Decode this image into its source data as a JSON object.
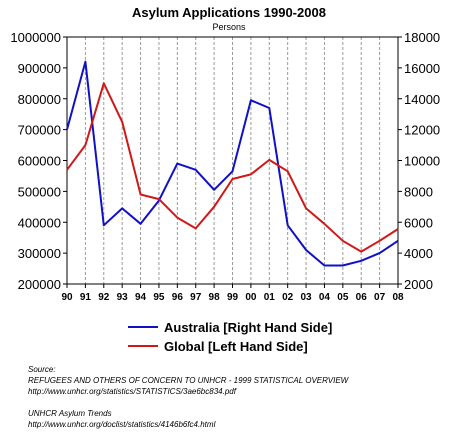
{
  "chart_data": {
    "type": "line",
    "title": "Asylum Applications 1990-2008",
    "subtitle": "Persons",
    "categories": [
      "90",
      "91",
      "92",
      "93",
      "94",
      "95",
      "96",
      "97",
      "98",
      "99",
      "00",
      "01",
      "02",
      "03",
      "04",
      "05",
      "06",
      "07",
      "08"
    ],
    "y_left": {
      "min": 200000,
      "max": 1000000,
      "step": 100000,
      "ticks": [
        "200000",
        "300000",
        "400000",
        "500000",
        "600000",
        "700000",
        "800000",
        "900000",
        "1000000"
      ]
    },
    "y_right": {
      "min": 2000,
      "max": 18000,
      "step": 2000,
      "ticks": [
        "2000",
        "4000",
        "6000",
        "8000",
        "10000",
        "12000",
        "14000",
        "16000",
        "18000"
      ]
    },
    "series": [
      {
        "name": "Australia [Right Hand Side]",
        "axis": "right",
        "color": "#1010c8",
        "values": [
          12000,
          16400,
          5800,
          6900,
          5900,
          7400,
          9800,
          9400,
          8100,
          9300,
          13900,
          13400,
          5800,
          4200,
          3200,
          3200,
          3500,
          4000,
          4800
        ]
      },
      {
        "name": "Global [Left Hand Side]",
        "axis": "left",
        "color": "#d01818",
        "values": [
          570000,
          650000,
          850000,
          725000,
          490000,
          475000,
          415000,
          380000,
          450000,
          540000,
          555000,
          602000,
          565000,
          445000,
          395000,
          340000,
          305000,
          340000,
          378000
        ]
      }
    ],
    "grid": "vertical-dashed",
    "legend_position": "bottom"
  },
  "source": {
    "heading": "Source:",
    "line1": "REFUGEES AND OTHERS OF CONCERN TO UNHCR - 1999 STATISTICAL OVERVIEW",
    "line2": "http://www.unhcr.org/statistics/STATISTICS/3ae6bc834.pdf",
    "line3": "UNHCR Asylum Trends",
    "line4": "http://www.unhcr.org/doclist/statistics/4146b6fc4.html"
  }
}
